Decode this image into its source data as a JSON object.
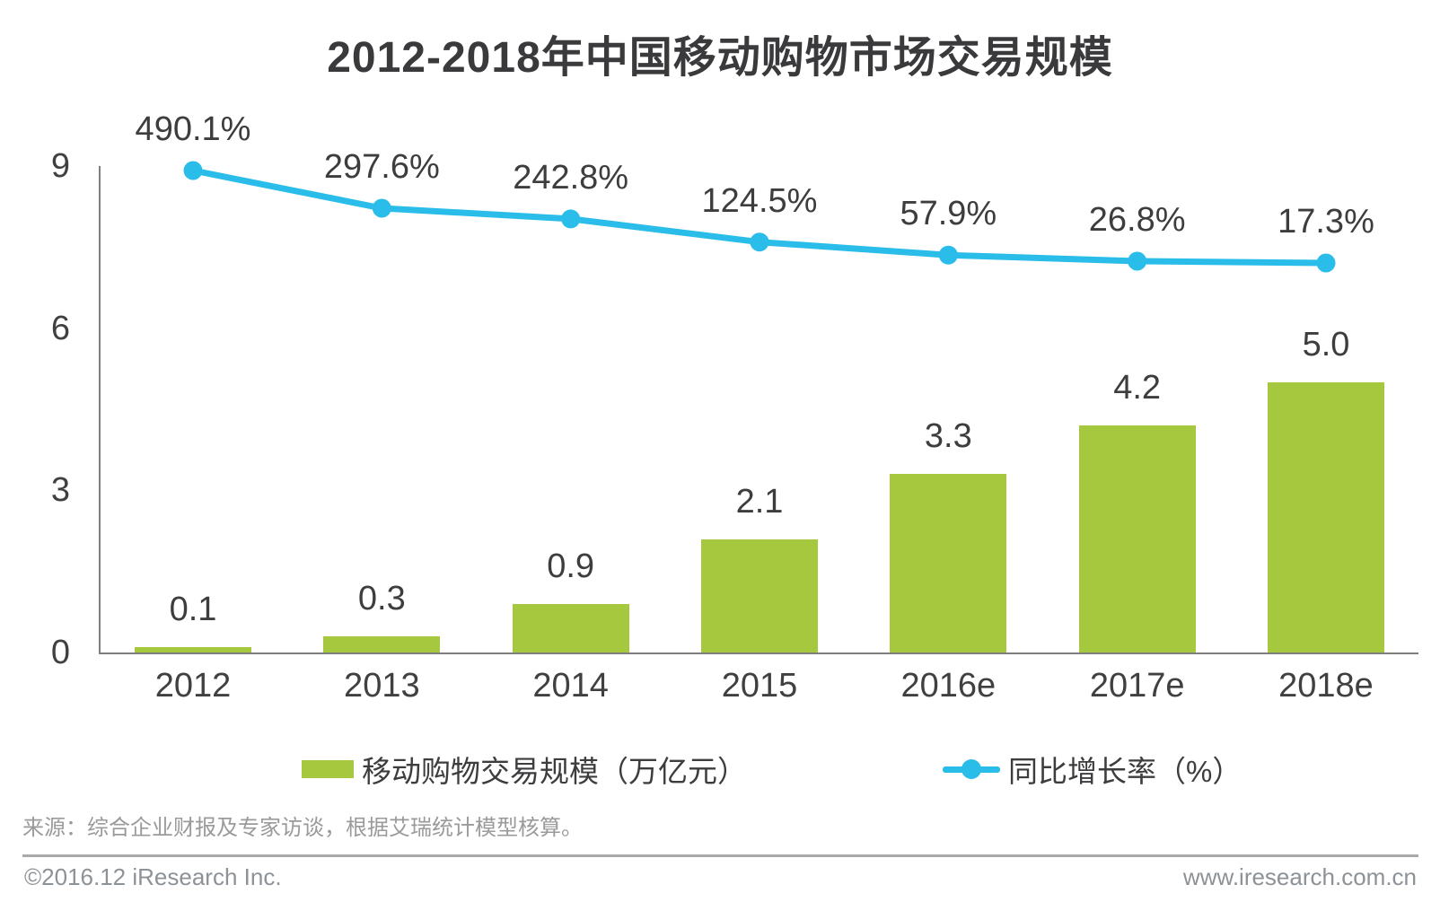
{
  "title": "2012-2018年中国移动购物市场交易规模",
  "chart_data": {
    "type": "bar+line",
    "categories": [
      "2012",
      "2013",
      "2014",
      "2015",
      "2016e",
      "2017e",
      "2018e"
    ],
    "series": [
      {
        "name": "移动购物交易规模（万亿元）",
        "type": "bar",
        "axis": "left",
        "values": [
          0.1,
          0.3,
          0.9,
          2.1,
          3.3,
          4.2,
          5.0
        ],
        "labels": [
          "0.1",
          "0.3",
          "0.9",
          "2.1",
          "3.3",
          "4.2",
          "5.0"
        ]
      },
      {
        "name": "同比增长率（%）",
        "type": "line",
        "axis": "right-hidden",
        "values": [
          490.1,
          297.6,
          242.8,
          124.5,
          57.9,
          26.8,
          17.3
        ],
        "labels": [
          "490.1%",
          "297.6%",
          "242.8%",
          "124.5%",
          "57.9%",
          "26.8%",
          "17.3%"
        ]
      }
    ],
    "y_axis": {
      "ticks": [
        0,
        3,
        6,
        9
      ],
      "range": [
        0,
        9
      ]
    },
    "grid": "off",
    "legend_position": "bottom"
  },
  "colors": {
    "bar": "#a6c83e",
    "line": "#2bbde9",
    "label_text": "#3d3d3f",
    "axis": "#7f7f7f",
    "muted": "#9a9a9a"
  },
  "source": "来源：综合企业财报及专家访谈，根据艾瑞统计模型核算。",
  "footer": {
    "left": "©2016.12 iResearch Inc.",
    "right": "www.iresearch.com.cn"
  }
}
